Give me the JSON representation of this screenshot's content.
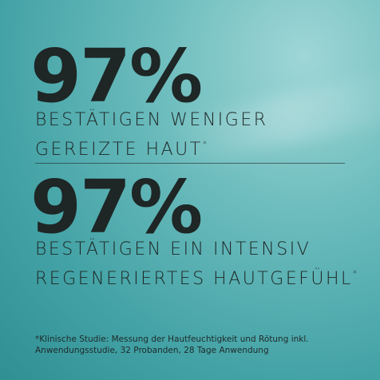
{
  "claims": [
    {
      "figure": "97%",
      "lines": [
        "BESTÄTIGEN WENIGER",
        "GEREIZTE HAUT"
      ],
      "mark": "*"
    },
    {
      "figure": "97%",
      "lines": [
        "BESTÄTIGEN EIN INTENSIV",
        "REGENERIERTES HAUTGEFÜHL"
      ],
      "mark": "*"
    }
  ],
  "footnote": [
    "*Klinische Studie: Messung der Hautfeuchtigkeit und Rötung inkl.",
    "Anwendungsstudie, 32 Probanden, 28 Tage Anwendung"
  ]
}
